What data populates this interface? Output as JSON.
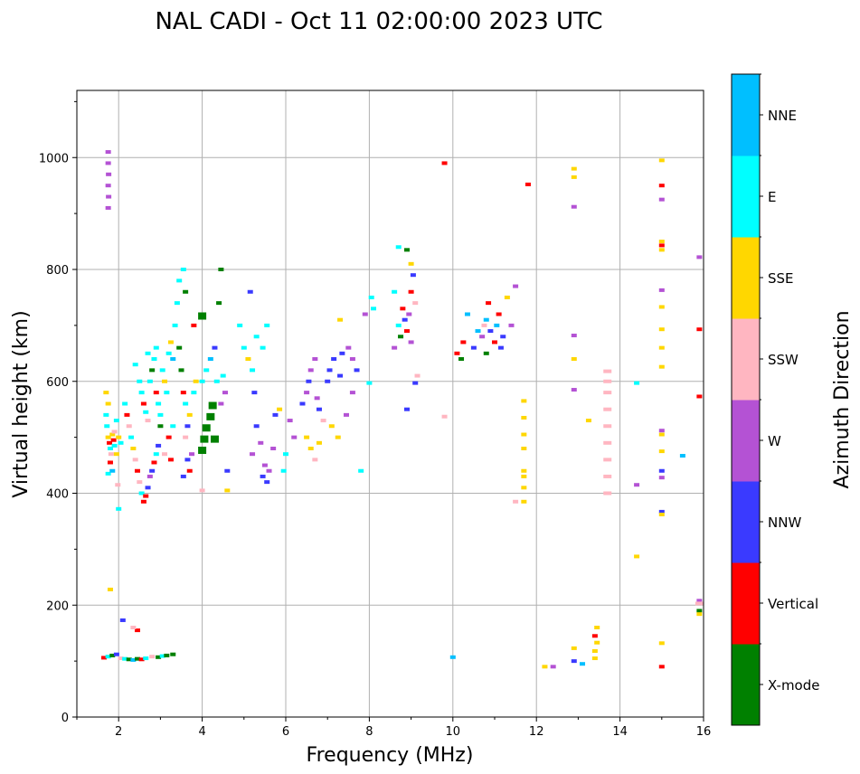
{
  "chart_data": {
    "type": "scatter",
    "title": "NAL CADI - Oct 11 02:00:00 2023 UTC",
    "xlabel": "Frequency (MHz)",
    "ylabel": "Virtual height (km)",
    "xlim": [
      1,
      16
    ],
    "ylim": [
      0,
      1120
    ],
    "xticks": [
      2,
      4,
      6,
      8,
      10,
      12,
      14,
      16
    ],
    "yticks": [
      0,
      200,
      400,
      600,
      800,
      1000
    ],
    "grid": true,
    "colorbar": {
      "label": "Azimuth Direction",
      "categories": [
        "X-mode",
        "Vertical",
        "NNW",
        "W",
        "SSW",
        "SSE",
        "E",
        "NNE"
      ],
      "colors": [
        "#008000",
        "#ff0000",
        "#3a3aff",
        "#b452d4",
        "#ffb6c1",
        "#ffd700",
        "#00ffff",
        "#00bfff"
      ]
    },
    "points": [
      [
        1.65,
        106,
        1
      ],
      [
        1.75,
        108,
        6
      ],
      [
        1.85,
        110,
        0
      ],
      [
        1.95,
        112,
        2
      ],
      [
        2.05,
        105,
        4
      ],
      [
        2.15,
        104,
        6
      ],
      [
        2.25,
        103,
        0
      ],
      [
        2.35,
        102,
        7
      ],
      [
        2.45,
        104,
        0
      ],
      [
        2.55,
        103,
        1
      ],
      [
        2.65,
        105,
        6
      ],
      [
        2.8,
        108,
        4
      ],
      [
        2.95,
        107,
        0
      ],
      [
        3.05,
        109,
        6
      ],
      [
        3.15,
        110,
        0
      ],
      [
        3.3,
        112,
        0
      ],
      [
        2.1,
        173,
        2
      ],
      [
        1.8,
        228,
        5
      ],
      [
        2.45,
        155,
        1
      ],
      [
        2.35,
        160,
        4
      ],
      [
        1.7,
        580,
        5
      ],
      [
        1.75,
        560,
        5
      ],
      [
        1.7,
        540,
        6
      ],
      [
        1.72,
        520,
        6
      ],
      [
        1.75,
        500,
        5
      ],
      [
        1.78,
        490,
        1
      ],
      [
        1.8,
        480,
        6
      ],
      [
        1.82,
        470,
        4
      ],
      [
        1.85,
        505,
        5
      ],
      [
        1.88,
        495,
        1
      ],
      [
        1.9,
        485,
        6
      ],
      [
        1.95,
        470,
        5
      ],
      [
        1.8,
        455,
        1
      ],
      [
        1.75,
        435,
        6
      ],
      [
        1.9,
        510,
        4
      ],
      [
        1.95,
        530,
        6
      ],
      [
        2.0,
        500,
        5
      ],
      [
        2.05,
        490,
        6
      ],
      [
        1.85,
        440,
        7
      ],
      [
        1.98,
        415,
        4
      ],
      [
        2.0,
        372,
        6
      ],
      [
        1.75,
        1010,
        3
      ],
      [
        1.75,
        990,
        3
      ],
      [
        1.76,
        970,
        3
      ],
      [
        1.75,
        950,
        3
      ],
      [
        1.76,
        930,
        3
      ],
      [
        1.75,
        910,
        3
      ],
      [
        2.15,
        560,
        6
      ],
      [
        2.2,
        540,
        1
      ],
      [
        2.25,
        520,
        4
      ],
      [
        2.3,
        500,
        6
      ],
      [
        2.35,
        480,
        5
      ],
      [
        2.4,
        460,
        4
      ],
      [
        2.45,
        440,
        1
      ],
      [
        2.5,
        420,
        4
      ],
      [
        2.55,
        400,
        6
      ],
      [
        2.6,
        385,
        1
      ],
      [
        2.65,
        395,
        1
      ],
      [
        2.7,
        410,
        2
      ],
      [
        2.75,
        430,
        3
      ],
      [
        2.8,
        440,
        2
      ],
      [
        2.85,
        455,
        1
      ],
      [
        2.9,
        470,
        6
      ],
      [
        2.95,
        485,
        2
      ],
      [
        2.5,
        600,
        6
      ],
      [
        2.55,
        580,
        6
      ],
      [
        2.6,
        560,
        1
      ],
      [
        2.65,
        545,
        6
      ],
      [
        2.7,
        530,
        4
      ],
      [
        2.75,
        600,
        6
      ],
      [
        2.8,
        620,
        0
      ],
      [
        2.85,
        640,
        6
      ],
      [
        2.9,
        580,
        1
      ],
      [
        2.95,
        560,
        6
      ],
      [
        3.0,
        540,
        6
      ],
      [
        3.05,
        620,
        6
      ],
      [
        3.1,
        600,
        5
      ],
      [
        3.15,
        580,
        6
      ],
      [
        3.2,
        650,
        6
      ],
      [
        3.25,
        670,
        5
      ],
      [
        3.3,
        640,
        7
      ],
      [
        3.35,
        700,
        6
      ],
      [
        3.4,
        740,
        6
      ],
      [
        3.45,
        780,
        6
      ],
      [
        3.55,
        800,
        6
      ],
      [
        3.0,
        520,
        0
      ],
      [
        2.9,
        660,
        6
      ],
      [
        2.7,
        650,
        6
      ],
      [
        2.4,
        630,
        6
      ],
      [
        3.2,
        500,
        1
      ],
      [
        3.3,
        520,
        6
      ],
      [
        3.1,
        470,
        4
      ],
      [
        3.25,
        460,
        1
      ],
      [
        3.5,
        620,
        0
      ],
      [
        3.45,
        660,
        0
      ],
      [
        3.6,
        760,
        0
      ],
      [
        3.55,
        580,
        1
      ],
      [
        3.6,
        560,
        6
      ],
      [
        3.7,
        540,
        5
      ],
      [
        3.8,
        580,
        6
      ],
      [
        3.85,
        600,
        5
      ],
      [
        3.65,
        520,
        2
      ],
      [
        3.6,
        500,
        4
      ],
      [
        3.75,
        470,
        3
      ],
      [
        3.65,
        460,
        2
      ],
      [
        3.55,
        430,
        2
      ],
      [
        3.7,
        440,
        1
      ],
      [
        4.0,
        480,
        0
      ],
      [
        4.05,
        500,
        0
      ],
      [
        4.1,
        520,
        0
      ],
      [
        4.2,
        540,
        0
      ],
      [
        4.25,
        560,
        0
      ],
      [
        4.3,
        500,
        0
      ],
      [
        4.0,
        600,
        6
      ],
      [
        4.1,
        620,
        6
      ],
      [
        4.2,
        640,
        7
      ],
      [
        4.35,
        600,
        6
      ],
      [
        4.5,
        610,
        6
      ],
      [
        4.4,
        740,
        0
      ],
      [
        4.45,
        800,
        0
      ],
      [
        4.0,
        720,
        0
      ],
      [
        4.45,
        560,
        3
      ],
      [
        4.55,
        580,
        3
      ],
      [
        4.6,
        440,
        2
      ],
      [
        4.0,
        405,
        4
      ],
      [
        4.6,
        405,
        5
      ],
      [
        3.8,
        700,
        1
      ],
      [
        4.3,
        660,
        2
      ],
      [
        4.9,
        700,
        6
      ],
      [
        5.0,
        660,
        6
      ],
      [
        5.1,
        640,
        5
      ],
      [
        5.2,
        620,
        6
      ],
      [
        5.3,
        680,
        6
      ],
      [
        5.45,
        660,
        6
      ],
      [
        5.55,
        700,
        6
      ],
      [
        5.15,
        760,
        2
      ],
      [
        5.2,
        470,
        3
      ],
      [
        5.3,
        520,
        2
      ],
      [
        5.4,
        490,
        3
      ],
      [
        5.45,
        430,
        2
      ],
      [
        5.5,
        450,
        3
      ],
      [
        5.55,
        420,
        2
      ],
      [
        5.6,
        440,
        3
      ],
      [
        5.7,
        480,
        3
      ],
      [
        5.75,
        540,
        2
      ],
      [
        5.85,
        550,
        5
      ],
      [
        5.95,
        440,
        6
      ],
      [
        6.0,
        470,
        6
      ],
      [
        5.25,
        580,
        2
      ],
      [
        6.1,
        530,
        3
      ],
      [
        6.2,
        500,
        3
      ],
      [
        6.4,
        560,
        2
      ],
      [
        6.5,
        580,
        3
      ],
      [
        6.55,
        600,
        2
      ],
      [
        6.6,
        620,
        3
      ],
      [
        6.7,
        640,
        3
      ],
      [
        6.75,
        570,
        3
      ],
      [
        6.8,
        550,
        2
      ],
      [
        6.5,
        500,
        5
      ],
      [
        6.6,
        480,
        5
      ],
      [
        6.7,
        460,
        4
      ],
      [
        6.8,
        490,
        5
      ],
      [
        6.9,
        530,
        4
      ],
      [
        7.0,
        600,
        2
      ],
      [
        7.05,
        620,
        2
      ],
      [
        7.15,
        640,
        2
      ],
      [
        7.3,
        610,
        2
      ],
      [
        7.35,
        650,
        2
      ],
      [
        7.5,
        660,
        3
      ],
      [
        7.6,
        640,
        3
      ],
      [
        7.7,
        620,
        2
      ],
      [
        7.1,
        520,
        5
      ],
      [
        7.25,
        500,
        5
      ],
      [
        7.45,
        540,
        3
      ],
      [
        7.6,
        580,
        3
      ],
      [
        7.8,
        440,
        6
      ],
      [
        7.3,
        710,
        5
      ],
      [
        7.9,
        720,
        3
      ],
      [
        8.05,
        750,
        6
      ],
      [
        8.1,
        730,
        6
      ],
      [
        8.0,
        597,
        6
      ],
      [
        8.7,
        840,
        6
      ],
      [
        8.9,
        835,
        0
      ],
      [
        9.0,
        810,
        5
      ],
      [
        9.05,
        790,
        2
      ],
      [
        8.6,
        760,
        6
      ],
      [
        8.8,
        730,
        1
      ],
      [
        8.85,
        710,
        2
      ],
      [
        8.9,
        690,
        1
      ],
      [
        8.95,
        720,
        3
      ],
      [
        9.1,
        740,
        4
      ],
      [
        8.7,
        700,
        6
      ],
      [
        8.75,
        680,
        0
      ],
      [
        9.0,
        670,
        3
      ],
      [
        9.15,
        610,
        4
      ],
      [
        9.0,
        760,
        1
      ],
      [
        8.6,
        660,
        3
      ],
      [
        8.9,
        550,
        2
      ],
      [
        9.1,
        597,
        2
      ],
      [
        9.8,
        990,
        1
      ],
      [
        9.8,
        537,
        4
      ],
      [
        10.0,
        107,
        7
      ],
      [
        10.1,
        650,
        1
      ],
      [
        10.2,
        640,
        0
      ],
      [
        10.25,
        670,
        1
      ],
      [
        10.35,
        720,
        7
      ],
      [
        10.5,
        660,
        2
      ],
      [
        10.6,
        690,
        7
      ],
      [
        10.7,
        680,
        3
      ],
      [
        10.75,
        700,
        4
      ],
      [
        10.8,
        710,
        7
      ],
      [
        10.85,
        740,
        1
      ],
      [
        10.9,
        690,
        2
      ],
      [
        11.0,
        670,
        1
      ],
      [
        11.05,
        700,
        7
      ],
      [
        11.1,
        720,
        1
      ],
      [
        11.2,
        680,
        2
      ],
      [
        11.3,
        750,
        5
      ],
      [
        11.4,
        700,
        3
      ],
      [
        11.5,
        770,
        3
      ],
      [
        10.8,
        650,
        0
      ],
      [
        11.15,
        660,
        2
      ],
      [
        11.5,
        385,
        4
      ],
      [
        11.8,
        952,
        1
      ],
      [
        11.7,
        565,
        5
      ],
      [
        11.7,
        535,
        5
      ],
      [
        11.7,
        505,
        5
      ],
      [
        11.7,
        480,
        5
      ],
      [
        11.7,
        440,
        5
      ],
      [
        11.7,
        430,
        5
      ],
      [
        11.7,
        410,
        5
      ],
      [
        11.7,
        385,
        5
      ],
      [
        12.2,
        90,
        5
      ],
      [
        12.4,
        90,
        3
      ],
      [
        12.9,
        100,
        2
      ],
      [
        13.1,
        95,
        7
      ],
      [
        12.9,
        123,
        5
      ],
      [
        12.9,
        980,
        5
      ],
      [
        12.9,
        965,
        5
      ],
      [
        12.9,
        912,
        3
      ],
      [
        12.9,
        682,
        3
      ],
      [
        12.9,
        640,
        5
      ],
      [
        12.9,
        585,
        3
      ],
      [
        13.25,
        530,
        5
      ],
      [
        13.4,
        105,
        5
      ],
      [
        13.4,
        118,
        5
      ],
      [
        13.45,
        133,
        5
      ],
      [
        13.4,
        145,
        1
      ],
      [
        13.45,
        160,
        5
      ],
      [
        13.7,
        400,
        4
      ],
      [
        13.7,
        430,
        4
      ],
      [
        13.7,
        460,
        4
      ],
      [
        13.7,
        490,
        4
      ],
      [
        13.7,
        520,
        4
      ],
      [
        13.7,
        550,
        4
      ],
      [
        13.7,
        580,
        4
      ],
      [
        13.7,
        600,
        4
      ],
      [
        13.7,
        618,
        4
      ],
      [
        14.4,
        287,
        5
      ],
      [
        14.4,
        597,
        6
      ],
      [
        14.4,
        415,
        3
      ],
      [
        15.0,
        995,
        5
      ],
      [
        15.0,
        950,
        1
      ],
      [
        15.0,
        925,
        3
      ],
      [
        15.0,
        850,
        5
      ],
      [
        15.0,
        843,
        1
      ],
      [
        15.0,
        835,
        5
      ],
      [
        15.0,
        763,
        3
      ],
      [
        15.0,
        733,
        5
      ],
      [
        15.0,
        693,
        5
      ],
      [
        15.0,
        660,
        5
      ],
      [
        15.0,
        626,
        5
      ],
      [
        15.0,
        512,
        3
      ],
      [
        15.0,
        505,
        5
      ],
      [
        15.0,
        475,
        5
      ],
      [
        15.0,
        440,
        2
      ],
      [
        15.0,
        428,
        3
      ],
      [
        15.0,
        367,
        2
      ],
      [
        15.0,
        362,
        5
      ],
      [
        15.0,
        132,
        5
      ],
      [
        15.0,
        90,
        1
      ],
      [
        15.5,
        467,
        7
      ],
      [
        15.9,
        822,
        3
      ],
      [
        15.9,
        693,
        1
      ],
      [
        15.9,
        573,
        1
      ],
      [
        15.9,
        208,
        3
      ],
      [
        15.9,
        203,
        4
      ],
      [
        15.9,
        190,
        0
      ],
      [
        15.9,
        184,
        5
      ]
    ]
  }
}
